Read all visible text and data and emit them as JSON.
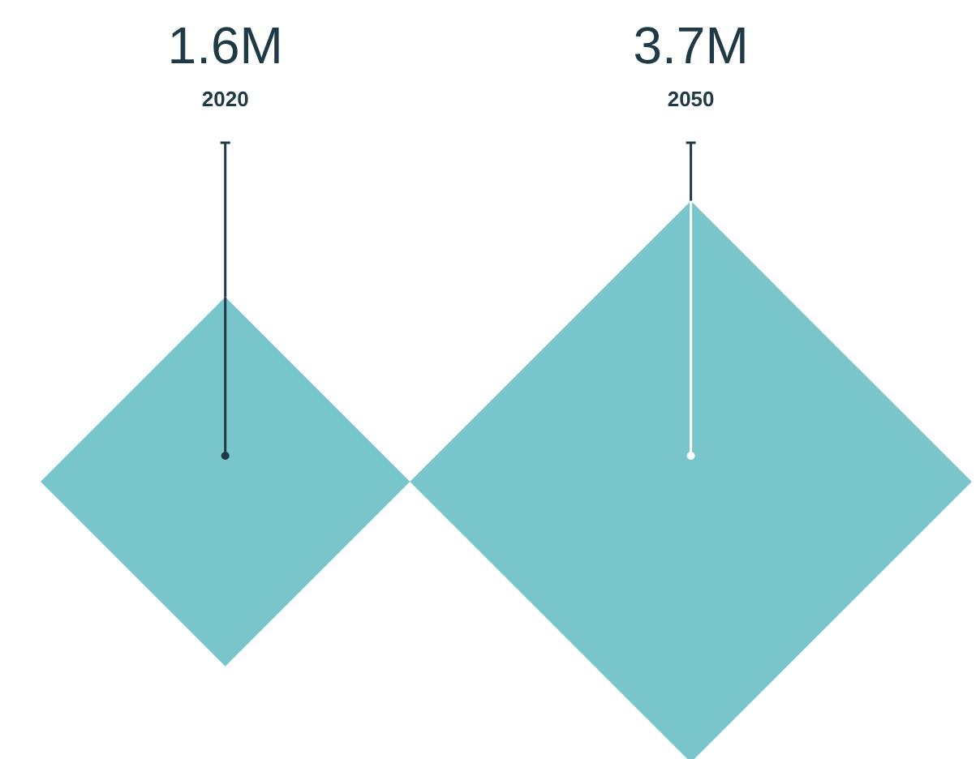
{
  "chart_data": {
    "type": "other",
    "categories": [
      "2020",
      "2050"
    ],
    "values": [
      1.6,
      3.7
    ],
    "value_labels": [
      "1.6M",
      "3.7M"
    ],
    "colors": [
      "#78c5cb",
      "#78c5cb"
    ]
  }
}
